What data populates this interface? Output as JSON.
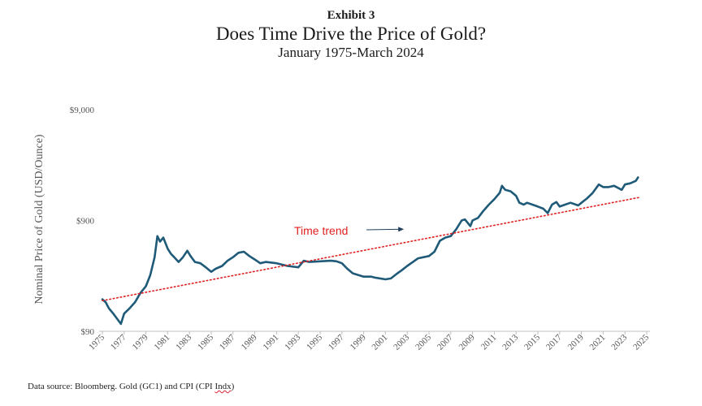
{
  "chart_data": {
    "type": "line",
    "exhibit": "Exhibit 3",
    "title": "Does Time Drive the Price of Gold?",
    "subtitle": "January 1975-March 2024",
    "ylabel": "Nominal Price of Gold (USD/Ounce)",
    "xlabel": "",
    "y_scale": "log",
    "ylim": [
      90,
      9000
    ],
    "xlim": [
      1975,
      2025
    ],
    "y_ticks": [
      {
        "value": 90,
        "label": "$90"
      },
      {
        "value": 900,
        "label": "$900"
      },
      {
        "value": 9000,
        "label": "$9,000"
      }
    ],
    "x_ticks": [
      1975,
      1977,
      1979,
      1981,
      1983,
      1985,
      1987,
      1989,
      1991,
      1993,
      1995,
      1997,
      1999,
      2001,
      2003,
      2005,
      2007,
      2009,
      2011,
      2013,
      2015,
      2017,
      2019,
      2021,
      2023,
      2025
    ],
    "grid": false,
    "legend": "none",
    "series": [
      {
        "kind": "price",
        "color": "#1f5a78",
        "x": [
          1975.0,
          1975.3,
          1975.6,
          1976.0,
          1976.4,
          1976.7,
          1977.0,
          1977.5,
          1978.0,
          1978.5,
          1979.0,
          1979.4,
          1979.8,
          1980.05,
          1980.3,
          1980.6,
          1981.0,
          1981.3,
          1981.6,
          1982.0,
          1982.4,
          1982.8,
          1983.1,
          1983.5,
          1984.0,
          1984.5,
          1985.0,
          1985.4,
          1986.0,
          1986.5,
          1987.0,
          1987.5,
          1988.0,
          1988.5,
          1989.0,
          1989.5,
          1990.0,
          1991.0,
          1992.0,
          1993.0,
          1993.5,
          1994.0,
          1995.0,
          1996.0,
          1996.5,
          1997.0,
          1997.5,
          1998.0,
          1999.0,
          1999.7,
          2000.0,
          2001.0,
          2001.5,
          2002.0,
          2002.5,
          2003.0,
          2004.0,
          2005.0,
          2005.5,
          2006.0,
          2006.5,
          2007.0,
          2007.5,
          2008.0,
          2008.3,
          2008.8,
          2009.0,
          2009.5,
          2010.0,
          2010.5,
          2011.0,
          2011.5,
          2011.7,
          2012.0,
          2012.5,
          2013.0,
          2013.3,
          2013.7,
          2014.0,
          2014.5,
          2015.0,
          2015.5,
          2015.9,
          2016.3,
          2016.7,
          2017.0,
          2017.5,
          2018.0,
          2018.7,
          2019.0,
          2019.5,
          2020.0,
          2020.6,
          2021.0,
          2021.5,
          2022.0,
          2022.7,
          2023.0,
          2023.5,
          2024.0,
          2024.2
        ],
        "y": [
          175,
          165,
          145,
          130,
          115,
          105,
          130,
          145,
          165,
          200,
          230,
          290,
          420,
          650,
          580,
          630,
          500,
          450,
          420,
          380,
          420,
          480,
          430,
          380,
          370,
          340,
          310,
          330,
          350,
          390,
          420,
          460,
          470,
          430,
          400,
          370,
          380,
          370,
          350,
          340,
          390,
          380,
          385,
          390,
          385,
          370,
          330,
          300,
          280,
          280,
          275,
          265,
          270,
          295,
          320,
          350,
          410,
          430,
          470,
          590,
          630,
          650,
          750,
          900,
          920,
          800,
          900,
          950,
          1100,
          1250,
          1400,
          1600,
          1850,
          1700,
          1650,
          1500,
          1300,
          1250,
          1300,
          1250,
          1200,
          1150,
          1050,
          1250,
          1320,
          1200,
          1250,
          1300,
          1230,
          1300,
          1420,
          1580,
          1900,
          1800,
          1800,
          1850,
          1700,
          1900,
          1950,
          2050,
          2200
        ]
      },
      {
        "kind": "trend",
        "name": "Time trend",
        "color": "#e02020",
        "x": [
          1975.0,
          2024.3
        ],
        "y": [
          170,
          1450
        ]
      }
    ],
    "annotations": [
      {
        "text": "Time trend",
        "color": "#e02020",
        "arrow_to": {
          "x": 2002.7,
          "y": 750
        }
      }
    ]
  },
  "footer": {
    "source_prefix": "Data source: Bloomberg. Gold (GC1) and CPI (CPI ",
    "source_squiggle": "Indx",
    "source_suffix": ")"
  }
}
